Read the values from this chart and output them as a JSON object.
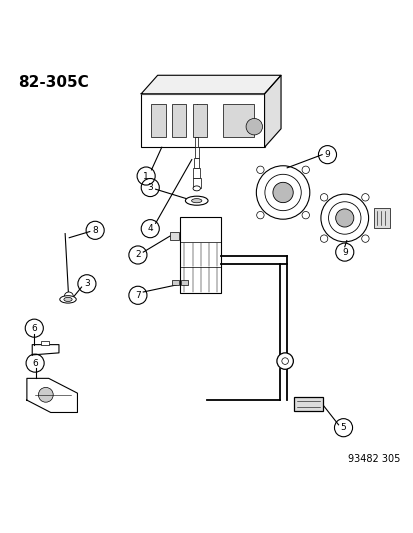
{
  "title": "82-305C",
  "footer": "93482 305",
  "bg_color": "#ffffff",
  "text_color": "#000000",
  "line_color": "#000000",
  "title_fontsize": 11,
  "footer_fontsize": 7
}
